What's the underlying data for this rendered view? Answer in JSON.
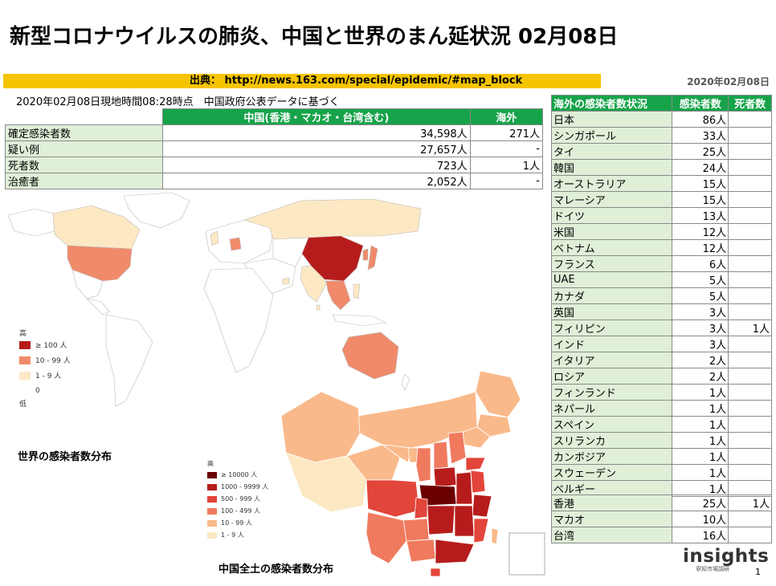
{
  "title": "新型コロナウイルスの肺炎、中国と世界のまん延状況 02月08日",
  "source": {
    "text": "出典： http://news.163.com/special/epidemic/#map_block",
    "date": "2020年02月08日"
  },
  "note": "2020年02月08日現地時間08:28時点　中国政府公表データに基づく",
  "summary": {
    "headers": [
      "中国(香港・マカオ・台湾含む)",
      "海外"
    ],
    "rows": [
      {
        "label": "確定感染者数",
        "china": "34,598人",
        "overseas": "271人"
      },
      {
        "label": "疑い例",
        "china": "27,657人",
        "overseas": "-"
      },
      {
        "label": "死者数",
        "china": "723人",
        "overseas": "1人"
      },
      {
        "label": "治癒者",
        "china": "2,052人",
        "overseas": "-"
      }
    ]
  },
  "overseas": {
    "headers": [
      "海外の感染者数状況",
      "感染者数",
      "死者数"
    ],
    "rows": [
      {
        "country": "日本",
        "cases": "86人",
        "deaths": ""
      },
      {
        "country": "シンガポール",
        "cases": "33人",
        "deaths": ""
      },
      {
        "country": "タイ",
        "cases": "25人",
        "deaths": ""
      },
      {
        "country": "韓国",
        "cases": "24人",
        "deaths": ""
      },
      {
        "country": "オーストラリア",
        "cases": "15人",
        "deaths": ""
      },
      {
        "country": "マレーシア",
        "cases": "15人",
        "deaths": ""
      },
      {
        "country": "ドイツ",
        "cases": "13人",
        "deaths": ""
      },
      {
        "country": "米国",
        "cases": "12人",
        "deaths": ""
      },
      {
        "country": "ベトナム",
        "cases": "12人",
        "deaths": ""
      },
      {
        "country": "フランス",
        "cases": "6人",
        "deaths": ""
      },
      {
        "country": "UAE",
        "cases": "5人",
        "deaths": ""
      },
      {
        "country": "カナダ",
        "cases": "5人",
        "deaths": ""
      },
      {
        "country": "英国",
        "cases": "3人",
        "deaths": ""
      },
      {
        "country": "フィリピン",
        "cases": "3人",
        "deaths": "1人"
      },
      {
        "country": "インド",
        "cases": "3人",
        "deaths": ""
      },
      {
        "country": "イタリア",
        "cases": "2人",
        "deaths": ""
      },
      {
        "country": "ロシア",
        "cases": "2人",
        "deaths": ""
      },
      {
        "country": "フィンランド",
        "cases": "1人",
        "deaths": ""
      },
      {
        "country": "ネパール",
        "cases": "1人",
        "deaths": ""
      },
      {
        "country": "スペイン",
        "cases": "1人",
        "deaths": ""
      },
      {
        "country": "スリランカ",
        "cases": "1人",
        "deaths": ""
      },
      {
        "country": "カンボジア",
        "cases": "1人",
        "deaths": ""
      },
      {
        "country": "スウェーデン",
        "cases": "1人",
        "deaths": ""
      },
      {
        "country": "ベルギー",
        "cases": "1人",
        "deaths": ""
      }
    ]
  },
  "regions": [
    {
      "name": "香港",
      "cases": "25人",
      "deaths": "1人"
    },
    {
      "name": "マカオ",
      "cases": "10人",
      "deaths": ""
    },
    {
      "name": "台湾",
      "cases": "16人",
      "deaths": ""
    }
  ],
  "world_map": {
    "legend_high": "高",
    "legend_low": "低",
    "legend": [
      {
        "label": "≥ 100 人",
        "color": "#b71c1c"
      },
      {
        "label": "10 - 99 人",
        "color": "#f08a6a"
      },
      {
        "label": "1 - 9 人",
        "color": "#fde8c4"
      },
      {
        "label": "0",
        "color": "#ffffff"
      }
    ],
    "caption": "世界の感染者数分布"
  },
  "china_map": {
    "legend_high": "高",
    "legend": [
      {
        "label": "≥ 10000 人",
        "color": "#6b0000"
      },
      {
        "label": "1000 - 9999 人",
        "color": "#b71c1c"
      },
      {
        "label": "500 - 999 人",
        "color": "#e2453a"
      },
      {
        "label": "100 - 499 人",
        "color": "#f07a5e"
      },
      {
        "label": "10 - 99 人",
        "color": "#f9b98a"
      },
      {
        "label": "1 - 9 人",
        "color": "#fde8c4"
      }
    ],
    "caption": "中国全土の感染者数分布"
  },
  "logo": {
    "name": "insights",
    "sub": "寧知市場調研"
  },
  "page_number": "1"
}
